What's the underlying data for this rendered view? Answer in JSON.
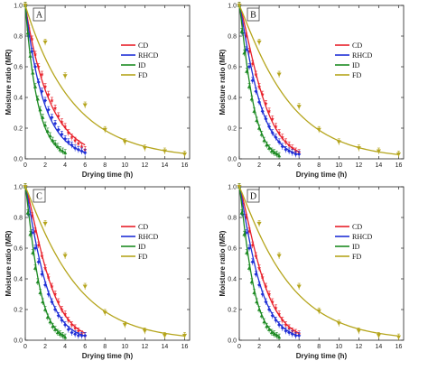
{
  "colors": {
    "CD": "#e8202a",
    "RHCD": "#1f2fd6",
    "ID": "#1c8a22",
    "FD": "#b5a51c"
  },
  "chart_data": [
    {
      "type": "line",
      "panel": "A",
      "xlabel": "Drying time (h)",
      "ylabel": "Moisture ratio (MR)",
      "xlim": [
        0,
        16.5
      ],
      "ylim": [
        0,
        1.0
      ],
      "xticks": [
        0,
        2,
        4,
        6,
        8,
        10,
        12,
        14,
        16
      ],
      "yticks": [
        0.0,
        0.2,
        0.4,
        0.6,
        0.8,
        1.0
      ],
      "legend_position": "top-right",
      "series": [
        {
          "name": "CD",
          "x_points": [
            0,
            0.33,
            0.67,
            1.0,
            1.33,
            1.67,
            2.0,
            2.33,
            2.67,
            3.0,
            3.33,
            3.67,
            4.0,
            4.33,
            4.67,
            5.0,
            5.33,
            5.67,
            6.0
          ],
          "y_points": [
            1.0,
            0.85,
            0.78,
            0.68,
            0.6,
            0.55,
            0.47,
            0.42,
            0.38,
            0.33,
            0.28,
            0.24,
            0.21,
            0.17,
            0.14,
            0.12,
            0.1,
            0.08,
            0.06
          ],
          "k": 0.4,
          "n": 1.0,
          "x_fit_max": 6.0
        },
        {
          "name": "RHCD",
          "x_points": [
            0,
            0.33,
            0.67,
            1.0,
            1.33,
            1.67,
            2.0,
            2.33,
            2.67,
            3.0,
            3.33,
            3.67,
            4.0,
            4.33,
            4.67,
            5.0,
            5.33,
            5.67,
            6.0
          ],
          "y_points": [
            1.0,
            0.8,
            0.7,
            0.6,
            0.5,
            0.44,
            0.38,
            0.32,
            0.27,
            0.23,
            0.19,
            0.16,
            0.13,
            0.11,
            0.09,
            0.07,
            0.06,
            0.05,
            0.04
          ],
          "k": 0.53,
          "n": 1.0,
          "x_fit_max": 6.0
        },
        {
          "name": "ID",
          "x_points": [
            0,
            0.25,
            0.5,
            0.75,
            1.0,
            1.25,
            1.5,
            1.75,
            2.0,
            2.25,
            2.5,
            2.75,
            3.0,
            3.25,
            3.5,
            3.75,
            4.0
          ],
          "y_points": [
            1.0,
            0.82,
            0.67,
            0.56,
            0.47,
            0.39,
            0.32,
            0.27,
            0.22,
            0.18,
            0.15,
            0.12,
            0.1,
            0.08,
            0.06,
            0.05,
            0.04
          ],
          "k": 0.8,
          "n": 1.0,
          "x_fit_max": 4.0
        },
        {
          "name": "FD",
          "x_points": [
            0,
            2,
            4,
            6,
            8,
            10,
            12,
            14,
            16
          ],
          "y_points": [
            1.0,
            0.76,
            0.54,
            0.35,
            0.19,
            0.11,
            0.07,
            0.05,
            0.03
          ],
          "k": 0.21,
          "n": 1.0,
          "x_fit_max": 16.0
        }
      ]
    },
    {
      "type": "line",
      "panel": "B",
      "xlabel": "Drying time (h)",
      "ylabel": "Moisture ratio (MR)",
      "xlim": [
        0,
        16.5
      ],
      "ylim": [
        0,
        1.0
      ],
      "xticks": [
        0,
        2,
        4,
        6,
        8,
        10,
        12,
        14,
        16
      ],
      "yticks": [
        0.0,
        0.2,
        0.4,
        0.6,
        0.8,
        1.0
      ],
      "legend_position": "top-right",
      "series": [
        {
          "name": "CD",
          "x_points": [
            0,
            0.33,
            0.67,
            1.0,
            1.33,
            1.67,
            2.0,
            2.33,
            2.67,
            3.0,
            3.33,
            3.67,
            4.0,
            4.33,
            4.67,
            5.0,
            5.33,
            5.67,
            6.0
          ],
          "y_points": [
            1.0,
            0.88,
            0.8,
            0.7,
            0.62,
            0.55,
            0.47,
            0.42,
            0.36,
            0.31,
            0.26,
            0.21,
            0.17,
            0.14,
            0.11,
            0.09,
            0.07,
            0.05,
            0.04
          ],
          "k": 0.3,
          "n": 1.3,
          "x_fit_max": 6.0
        },
        {
          "name": "RHCD",
          "x_points": [
            0,
            0.33,
            0.67,
            1.0,
            1.33,
            1.67,
            2.0,
            2.33,
            2.67,
            3.0,
            3.33,
            3.67,
            4.0,
            4.33,
            4.67,
            5.0,
            5.33,
            5.67,
            6.0
          ],
          "y_points": [
            1.0,
            0.82,
            0.71,
            0.6,
            0.51,
            0.44,
            0.37,
            0.31,
            0.26,
            0.21,
            0.17,
            0.14,
            0.11,
            0.08,
            0.06,
            0.05,
            0.04,
            0.03,
            0.03
          ],
          "k": 0.42,
          "n": 1.2,
          "x_fit_max": 6.0
        },
        {
          "name": "ID",
          "x_points": [
            0,
            0.25,
            0.5,
            0.75,
            1.0,
            1.25,
            1.5,
            1.75,
            2.0,
            2.25,
            2.5,
            2.75,
            3.0,
            3.25,
            3.5,
            3.75,
            4.0
          ],
          "y_points": [
            1.0,
            0.83,
            0.69,
            0.57,
            0.47,
            0.39,
            0.31,
            0.25,
            0.2,
            0.16,
            0.12,
            0.09,
            0.07,
            0.05,
            0.04,
            0.03,
            0.02
          ],
          "k": 0.68,
          "n": 1.2,
          "x_fit_max": 4.0
        },
        {
          "name": "FD",
          "x_points": [
            0,
            2,
            4,
            6,
            8,
            10,
            12,
            14,
            16
          ],
          "y_points": [
            1.0,
            0.76,
            0.55,
            0.34,
            0.19,
            0.11,
            0.07,
            0.05,
            0.03
          ],
          "k": 0.17,
          "n": 1.1,
          "x_fit_max": 16.0
        }
      ]
    },
    {
      "type": "line",
      "panel": "C",
      "xlabel": "Drying time (h)",
      "ylabel": "Moisture ratio (MR)",
      "xlim": [
        0,
        16.5
      ],
      "ylim": [
        0,
        1.0
      ],
      "xticks": [
        0,
        2,
        4,
        6,
        8,
        10,
        12,
        14,
        16
      ],
      "yticks": [
        0.0,
        0.2,
        0.4,
        0.6,
        0.8,
        1.0
      ],
      "legend_position": "top-right",
      "series": [
        {
          "name": "CD",
          "x_points": [
            0,
            0.33,
            0.67,
            1.0,
            1.33,
            1.67,
            2.0,
            2.33,
            2.67,
            3.0,
            3.33,
            3.67,
            4.0,
            4.33,
            4.67,
            5.0,
            5.33,
            5.67,
            6.0
          ],
          "y_points": [
            1.0,
            0.9,
            0.81,
            0.71,
            0.62,
            0.55,
            0.47,
            0.41,
            0.35,
            0.3,
            0.25,
            0.2,
            0.17,
            0.13,
            0.1,
            0.08,
            0.06,
            0.04,
            0.03
          ],
          "k": 0.3,
          "n": 1.3,
          "poly": true,
          "x_fit_max": 6.0
        },
        {
          "name": "RHCD",
          "x_points": [
            0,
            0.33,
            0.67,
            1.0,
            1.33,
            1.67,
            2.0,
            2.33,
            2.67,
            3.0,
            3.33,
            3.67,
            4.0,
            4.33,
            4.67,
            5.0,
            5.33,
            5.67,
            6.0
          ],
          "y_points": [
            1.0,
            0.82,
            0.7,
            0.6,
            0.51,
            0.43,
            0.36,
            0.3,
            0.25,
            0.2,
            0.16,
            0.13,
            0.1,
            0.07,
            0.05,
            0.04,
            0.03,
            0.03,
            0.03
          ],
          "k": 0.42,
          "n": 1.2,
          "poly": true,
          "x_fit_max": 6.0
        },
        {
          "name": "ID",
          "x_points": [
            0,
            0.25,
            0.5,
            0.75,
            1.0,
            1.25,
            1.5,
            1.75,
            2.0,
            2.25,
            2.5,
            2.75,
            3.0,
            3.25,
            3.5,
            3.75,
            4.0
          ],
          "y_points": [
            1.0,
            0.83,
            0.69,
            0.57,
            0.47,
            0.38,
            0.31,
            0.25,
            0.2,
            0.15,
            0.12,
            0.09,
            0.07,
            0.05,
            0.04,
            0.03,
            0.02
          ],
          "k": 0.68,
          "n": 1.2,
          "poly": true,
          "x_fit_max": 4.0
        },
        {
          "name": "FD",
          "x_points": [
            0,
            2,
            4,
            6,
            8,
            10,
            12,
            14,
            16
          ],
          "y_points": [
            1.0,
            0.76,
            0.55,
            0.35,
            0.18,
            0.1,
            0.06,
            0.03,
            0.03
          ],
          "k": 0.17,
          "n": 1.1,
          "poly": true,
          "x_fit_max": 16.0
        }
      ]
    },
    {
      "type": "line",
      "panel": "D",
      "xlabel": "Drying time (h)",
      "ylabel": "Moisture ratio (MR)",
      "xlim": [
        0,
        16.5
      ],
      "ylim": [
        0,
        1.0
      ],
      "xticks": [
        0,
        2,
        4,
        6,
        8,
        10,
        12,
        14,
        16
      ],
      "yticks": [
        0.0,
        0.2,
        0.4,
        0.6,
        0.8,
        1.0
      ],
      "legend_position": "top-right",
      "series": [
        {
          "name": "CD",
          "x_points": [
            0,
            0.33,
            0.67,
            1.0,
            1.33,
            1.67,
            2.0,
            2.33,
            2.67,
            3.0,
            3.33,
            3.67,
            4.0,
            4.33,
            4.67,
            5.0,
            5.33,
            5.67,
            6.0
          ],
          "y_points": [
            1.0,
            0.89,
            0.8,
            0.71,
            0.62,
            0.55,
            0.47,
            0.41,
            0.35,
            0.3,
            0.25,
            0.21,
            0.17,
            0.13,
            0.1,
            0.08,
            0.06,
            0.05,
            0.04
          ],
          "k": 0.3,
          "n": 1.3,
          "x_fit_max": 6.0
        },
        {
          "name": "RHCD",
          "x_points": [
            0,
            0.33,
            0.67,
            1.0,
            1.33,
            1.67,
            2.0,
            2.33,
            2.67,
            3.0,
            3.33,
            3.67,
            4.0,
            4.33,
            4.67,
            5.0,
            5.33,
            5.67,
            6.0
          ],
          "y_points": [
            1.0,
            0.82,
            0.7,
            0.6,
            0.51,
            0.43,
            0.36,
            0.3,
            0.25,
            0.2,
            0.16,
            0.13,
            0.1,
            0.08,
            0.06,
            0.05,
            0.04,
            0.03,
            0.03
          ],
          "k": 0.42,
          "n": 1.2,
          "x_fit_max": 6.0
        },
        {
          "name": "ID",
          "x_points": [
            0,
            0.25,
            0.5,
            0.75,
            1.0,
            1.25,
            1.5,
            1.75,
            2.0,
            2.25,
            2.5,
            2.75,
            3.0,
            3.25,
            3.5,
            3.75,
            4.0
          ],
          "y_points": [
            1.0,
            0.83,
            0.69,
            0.57,
            0.47,
            0.38,
            0.31,
            0.25,
            0.2,
            0.16,
            0.12,
            0.09,
            0.07,
            0.05,
            0.04,
            0.03,
            0.02
          ],
          "k": 0.68,
          "n": 1.2,
          "x_fit_max": 4.0
        },
        {
          "name": "FD",
          "x_points": [
            0,
            2,
            4,
            6,
            8,
            10,
            12,
            14,
            16
          ],
          "y_points": [
            1.0,
            0.76,
            0.55,
            0.35,
            0.19,
            0.11,
            0.06,
            0.03,
            0.02
          ],
          "k": 0.17,
          "n": 1.1,
          "x_fit_max": 16.0
        }
      ]
    }
  ]
}
